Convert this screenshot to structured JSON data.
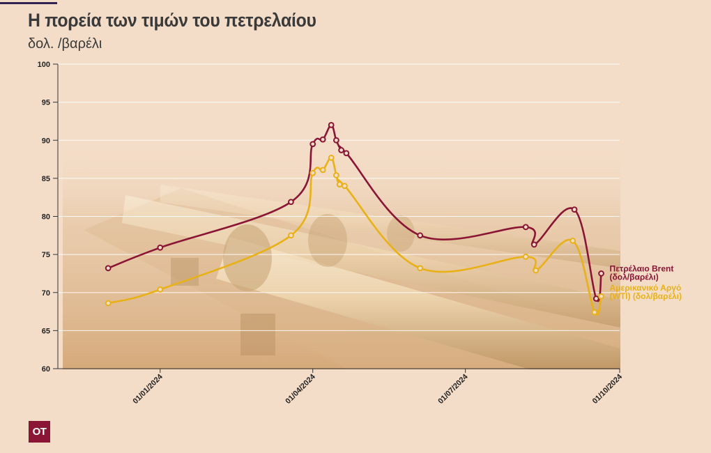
{
  "title": "Η πορεία των τιμών του πετρελαίου",
  "subtitle": "δολ. /βαρέλι",
  "logo_text": "ΟΤ",
  "colors": {
    "background": "#f4ddc8",
    "brent": "#8a1534",
    "wti": "#e8b118",
    "axis": "#333333",
    "grid": "#ffffff"
  },
  "chart_data": {
    "type": "line",
    "ylim": [
      60,
      100
    ],
    "y_ticks": [
      60,
      65,
      70,
      75,
      80,
      85,
      90,
      95,
      100
    ],
    "xlim": [
      "2023-11-01",
      "2024-10-01"
    ],
    "x_tick_labels": [
      {
        "date": "2024-01-01",
        "label": "01/01/2024"
      },
      {
        "date": "2024-04-01",
        "label": "01/04/2024"
      },
      {
        "date": "2024-07-01",
        "label": "01/07/2024"
      },
      {
        "date": "2024-10-01",
        "label": "01/10/2024"
      }
    ],
    "grid": true,
    "series": [
      {
        "name": "Πετρέλαιο Brent (δολ/βαρέλι)",
        "label_lines": [
          "Πετρέλαιο Brent",
          "(δολ/βαρέλι)"
        ],
        "color": "#8a1534",
        "points": [
          {
            "date": "2023-12-01",
            "value": 73.2
          },
          {
            "date": "2024-01-01",
            "value": 75.9
          },
          {
            "date": "2024-03-19",
            "value": 81.9
          },
          {
            "date": "2024-04-01",
            "value": 89.5
          },
          {
            "date": "2024-04-07",
            "value": 90.1
          },
          {
            "date": "2024-04-12",
            "value": 92.0
          },
          {
            "date": "2024-04-15",
            "value": 90.0
          },
          {
            "date": "2024-04-18",
            "value": 88.7
          },
          {
            "date": "2024-04-21",
            "value": 88.3
          },
          {
            "date": "2024-06-04",
            "value": 77.5
          },
          {
            "date": "2024-08-06",
            "value": 78.6
          },
          {
            "date": "2024-08-11",
            "value": 76.3
          },
          {
            "date": "2024-09-04",
            "value": 80.9
          },
          {
            "date": "2024-09-17",
            "value": 69.2
          },
          {
            "date": "2024-09-20",
            "value": 72.5
          }
        ]
      },
      {
        "name": "Αμερικανικό Αργό (WTI) (δολ/βαρέλι)",
        "label_lines": [
          "Αμερικανικό Αργό",
          "(WTI) (δολ/βαρέλι)"
        ],
        "color": "#e8b118",
        "points": [
          {
            "date": "2023-12-01",
            "value": 68.6
          },
          {
            "date": "2024-01-01",
            "value": 70.4
          },
          {
            "date": "2024-03-19",
            "value": 77.5
          },
          {
            "date": "2024-04-01",
            "value": 85.7
          },
          {
            "date": "2024-04-07",
            "value": 86.1
          },
          {
            "date": "2024-04-12",
            "value": 87.7
          },
          {
            "date": "2024-04-15",
            "value": 85.4
          },
          {
            "date": "2024-04-17",
            "value": 84.2
          },
          {
            "date": "2024-04-20",
            "value": 84.0
          },
          {
            "date": "2024-06-04",
            "value": 73.2
          },
          {
            "date": "2024-08-06",
            "value": 74.7
          },
          {
            "date": "2024-08-12",
            "value": 72.9
          },
          {
            "date": "2024-09-03",
            "value": 76.8
          },
          {
            "date": "2024-09-16",
            "value": 67.4
          },
          {
            "date": "2024-09-20",
            "value": 69.5
          }
        ]
      }
    ]
  }
}
